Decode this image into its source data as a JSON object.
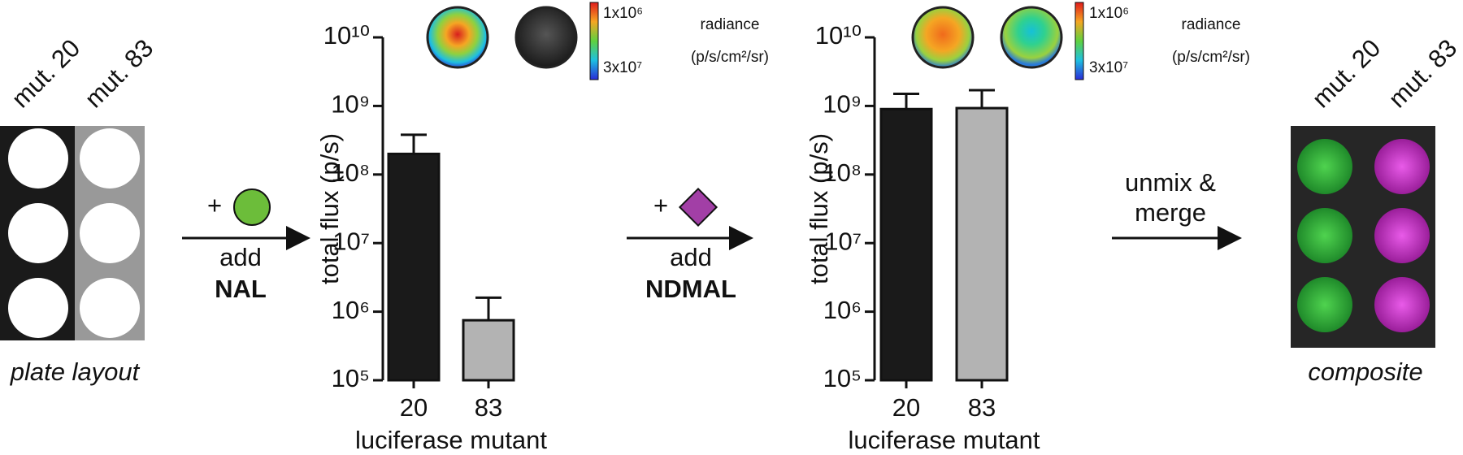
{
  "plate": {
    "labels": [
      "mut. 20",
      "mut. 83"
    ],
    "caption": "plate layout"
  },
  "steps": [
    {
      "plus": "+",
      "verb": "add",
      "substrate": "NAL"
    },
    {
      "plus": "+",
      "verb": "add",
      "substrate": "NDMAL"
    },
    {
      "lines": [
        "unmix &",
        "merge"
      ]
    }
  ],
  "composite": {
    "labels": [
      "mut. 20",
      "mut. 83"
    ],
    "caption": "composite"
  },
  "chart_data": [
    {
      "type": "bar",
      "y_label": "total flux (p/s)",
      "x_label": "luciferase mutant",
      "categories": [
        "20",
        "83"
      ],
      "values": [
        200000000,
        750000
      ],
      "errors": [
        180000000,
        850000
      ],
      "colors": [
        "#1a1a1a",
        "#b3b3b3"
      ],
      "yscale": "log",
      "ylim": [
        100000,
        10000000000
      ],
      "yticks": [
        {
          "value": 100000,
          "label": "10⁵"
        },
        {
          "value": 1000000,
          "label": "10⁶"
        },
        {
          "value": 10000000,
          "label": "10⁷"
        },
        {
          "value": 100000000,
          "label": "10⁸"
        },
        {
          "value": 1000000000,
          "label": "10⁹"
        },
        {
          "value": 10000000000,
          "label": "10¹⁰"
        }
      ],
      "colorbar": {
        "max_label": "1x10⁶",
        "min_label": "3x10⁷",
        "title": "radiance",
        "unit": "(p/s/cm²/sr)"
      }
    },
    {
      "type": "bar",
      "y_label": "total flux (p/s)",
      "x_label": "luciferase mutant",
      "categories": [
        "20",
        "83"
      ],
      "values": [
        900000000,
        930000000
      ],
      "errors": [
        600000000,
        770000000
      ],
      "colors": [
        "#1a1a1a",
        "#b3b3b3"
      ],
      "yscale": "log",
      "ylim": [
        100000,
        10000000000
      ],
      "yticks": [
        {
          "value": 100000,
          "label": "10⁵"
        },
        {
          "value": 1000000,
          "label": "10⁶"
        },
        {
          "value": 10000000,
          "label": "10⁷"
        },
        {
          "value": 100000000,
          "label": "10⁸"
        },
        {
          "value": 1000000000,
          "label": "10⁹"
        },
        {
          "value": 10000000000,
          "label": "10¹⁰"
        }
      ],
      "colorbar": {
        "max_label": "1x10⁶",
        "min_label": "3x10⁷",
        "title": "radiance",
        "unit": "(p/s/cm²/sr)"
      }
    }
  ]
}
